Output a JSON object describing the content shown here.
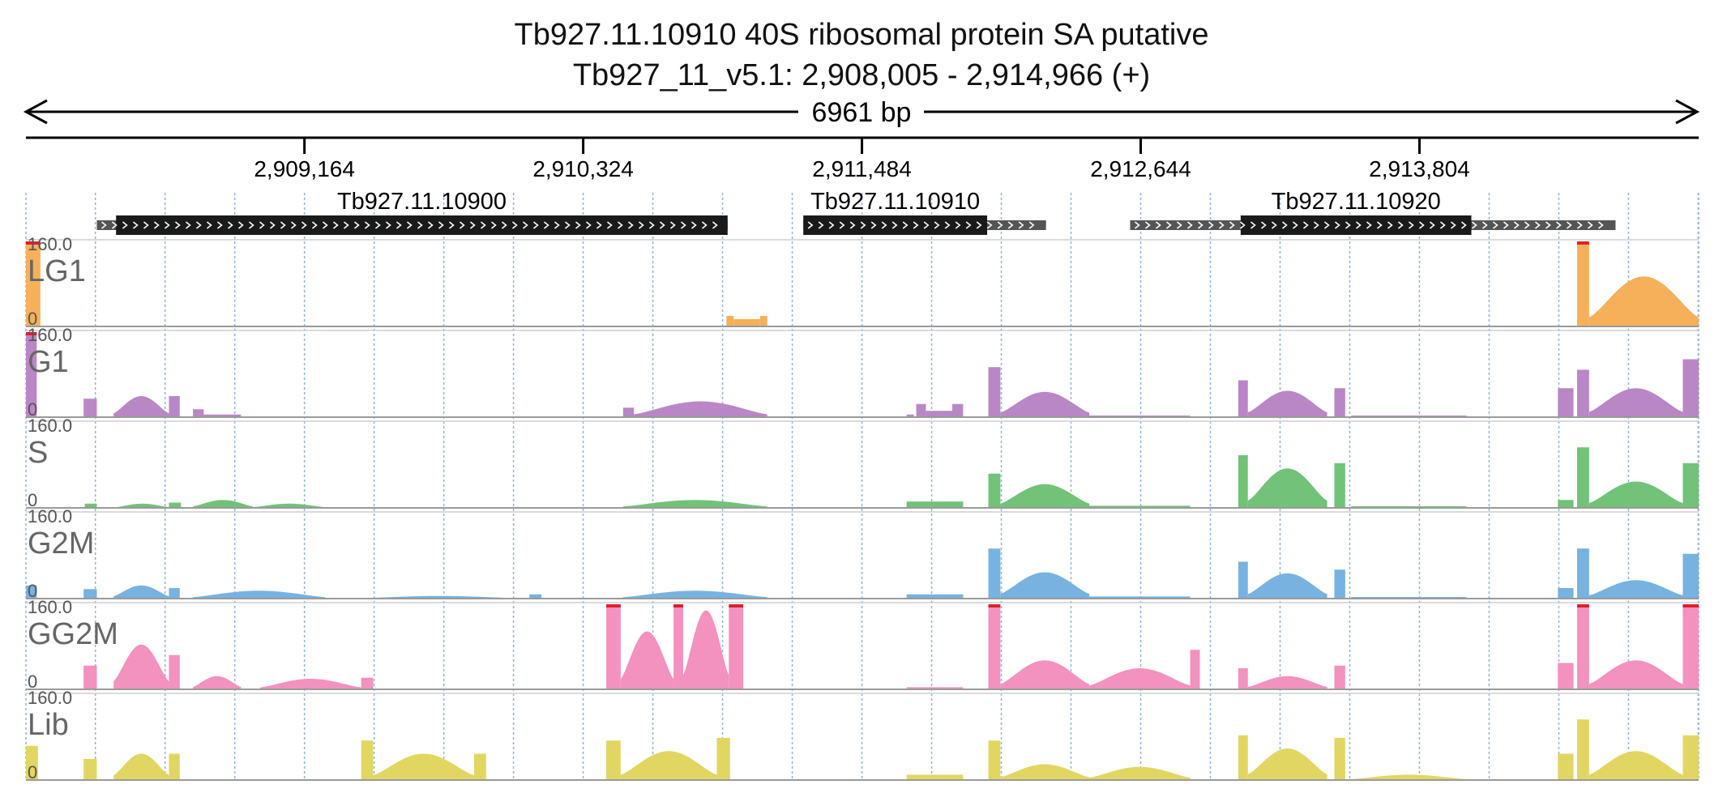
{
  "header": {
    "title": "Tb927.11.10910  40S ribosomal protein SA  putative",
    "location": "Tb927_11_v5.1: 2,908,005 - 2,914,966 (+)"
  },
  "ruler": {
    "span_label": "6961 bp",
    "start": 2908005,
    "end": 2914966,
    "ticks": [
      {
        "pos": 2909164,
        "label": "2,909,164"
      },
      {
        "pos": 2910324,
        "label": "2,910,324"
      },
      {
        "pos": 2911484,
        "label": "2,911,484"
      },
      {
        "pos": 2912644,
        "label": "2,912,644"
      },
      {
        "pos": 2913804,
        "label": "2,913,804"
      }
    ]
  },
  "genes": [
    {
      "name": "Tb927.11.10900",
      "start": 2908300,
      "end": 2910925,
      "cds_start": 2908380,
      "cds_end": 2910925
    },
    {
      "name": "Tb927.11.10910",
      "start": 2911240,
      "end": 2912250,
      "cds_start": 2911240,
      "cds_end": 2912005
    },
    {
      "name": "Tb927.11.10920",
      "start": 2912600,
      "end": 2914620,
      "cds_start": 2913060,
      "cds_end": 2914020
    }
  ],
  "colors": {
    "LG1": "#f6b05a",
    "G1": "#b987c6",
    "S": "#72c27a",
    "G2M": "#78b2e0",
    "GG2M": "#f391bf",
    "Lib": "#e2d663",
    "clip": "#e0202c",
    "cds": "#1a1a1a",
    "utr": "#555555",
    "grid": "#8fb4dd"
  },
  "chart_data": {
    "type": "area",
    "x_unit": "bp",
    "xlim": [
      2908005,
      2914966
    ],
    "ylim": [
      0,
      160.0
    ],
    "ymax_label": "160.0",
    "ymin_label": "0",
    "series": [
      {
        "name": "LG1",
        "segments": [
          [
            2908005,
            2908065,
            160
          ],
          [
            2910920,
            2910950,
            20
          ],
          [
            2910950,
            2911060,
            14
          ],
          [
            2911060,
            2911090,
            20
          ],
          [
            2914460,
            2914510,
            160
          ],
          [
            2914510,
            2914966,
            95,
            "hill"
          ]
        ]
      },
      {
        "name": "G1",
        "segments": [
          [
            2908005,
            2908050,
            160
          ],
          [
            2908245,
            2908300,
            35
          ],
          [
            2908370,
            2908600,
            40,
            "hill"
          ],
          [
            2908600,
            2908645,
            40
          ],
          [
            2908700,
            2908745,
            15
          ],
          [
            2908745,
            2908900,
            5
          ],
          [
            2910490,
            2910535,
            18
          ],
          [
            2910535,
            2911090,
            30,
            "hill"
          ],
          [
            2911670,
            2911700,
            5
          ],
          [
            2911710,
            2911750,
            25
          ],
          [
            2911750,
            2911870,
            12
          ],
          [
            2911860,
            2911905,
            25
          ],
          [
            2912010,
            2912060,
            95
          ],
          [
            2912060,
            2912430,
            48,
            "hill"
          ],
          [
            2912430,
            2912850,
            3
          ],
          [
            2913050,
            2913090,
            70
          ],
          [
            2913090,
            2913420,
            50,
            "hill"
          ],
          [
            2913450,
            2913495,
            55
          ],
          [
            2913520,
            2914000,
            3
          ],
          [
            2914380,
            2914445,
            55
          ],
          [
            2914460,
            2914510,
            90
          ],
          [
            2914510,
            2914900,
            55,
            "hill"
          ],
          [
            2914900,
            2914966,
            110
          ]
        ]
      },
      {
        "name": "S",
        "segments": [
          [
            2908250,
            2908300,
            8
          ],
          [
            2908380,
            2908600,
            8,
            "hill"
          ],
          [
            2908600,
            2908650,
            10
          ],
          [
            2908700,
            2908950,
            15,
            "hill"
          ],
          [
            2908950,
            2909250,
            8,
            "hill"
          ],
          [
            2910490,
            2911090,
            15,
            "hill"
          ],
          [
            2911670,
            2911905,
            12
          ],
          [
            2912010,
            2912060,
            65
          ],
          [
            2912060,
            2912430,
            45,
            "hill"
          ],
          [
            2912430,
            2912850,
            4
          ],
          [
            2913050,
            2913090,
            100
          ],
          [
            2913090,
            2913420,
            75,
            "hill"
          ],
          [
            2913450,
            2913495,
            85
          ],
          [
            2913520,
            2914000,
            3
          ],
          [
            2914380,
            2914445,
            15
          ],
          [
            2914460,
            2914510,
            115
          ],
          [
            2914510,
            2914900,
            50,
            "hill"
          ],
          [
            2914900,
            2914966,
            85
          ]
        ]
      },
      {
        "name": "G2M",
        "segments": [
          [
            2908005,
            2908050,
            25
          ],
          [
            2908245,
            2908300,
            18
          ],
          [
            2908370,
            2908600,
            25,
            "hill"
          ],
          [
            2908600,
            2908645,
            20
          ],
          [
            2908700,
            2909250,
            15,
            "hill"
          ],
          [
            2909400,
            2910050,
            5,
            "hill"
          ],
          [
            2910100,
            2910150,
            8
          ],
          [
            2910490,
            2911090,
            15,
            "hill"
          ],
          [
            2911670,
            2911905,
            8
          ],
          [
            2912010,
            2912060,
            95
          ],
          [
            2912060,
            2912430,
            50,
            "hill"
          ],
          [
            2912430,
            2912850,
            4
          ],
          [
            2913050,
            2913090,
            70
          ],
          [
            2913090,
            2913420,
            48,
            "hill"
          ],
          [
            2913450,
            2913495,
            55
          ],
          [
            2913520,
            2914000,
            3
          ],
          [
            2914380,
            2914445,
            20
          ],
          [
            2914460,
            2914510,
            95
          ],
          [
            2914510,
            2914900,
            35,
            "hill"
          ],
          [
            2914900,
            2914966,
            85
          ]
        ]
      },
      {
        "name": "GG2M",
        "segments": [
          [
            2908245,
            2908300,
            45
          ],
          [
            2908370,
            2908600,
            85,
            "hill"
          ],
          [
            2908600,
            2908645,
            65
          ],
          [
            2908700,
            2908900,
            25,
            "hill"
          ],
          [
            2908980,
            2909400,
            20,
            "hill"
          ],
          [
            2909400,
            2909450,
            22
          ],
          [
            2910420,
            2910480,
            160
          ],
          [
            2910480,
            2910700,
            110,
            "hill"
          ],
          [
            2910700,
            2910740,
            160
          ],
          [
            2910740,
            2910930,
            150,
            "hill"
          ],
          [
            2910930,
            2910990,
            160
          ],
          [
            2911670,
            2911905,
            4
          ],
          [
            2912010,
            2912060,
            160
          ],
          [
            2912060,
            2912430,
            55,
            "hill"
          ],
          [
            2912430,
            2912850,
            40,
            "hill"
          ],
          [
            2912850,
            2912890,
            75
          ],
          [
            2913050,
            2913090,
            40
          ],
          [
            2913090,
            2913420,
            25,
            "hill"
          ],
          [
            2913450,
            2913495,
            45
          ],
          [
            2914380,
            2914445,
            50
          ],
          [
            2914460,
            2914510,
            160
          ],
          [
            2914510,
            2914900,
            55,
            "hill"
          ],
          [
            2914900,
            2914966,
            160
          ]
        ]
      },
      {
        "name": "Lib",
        "segments": [
          [
            2908005,
            2908055,
            65
          ],
          [
            2908245,
            2908300,
            40
          ],
          [
            2908370,
            2908600,
            50,
            "hill"
          ],
          [
            2908600,
            2908645,
            50
          ],
          [
            2909400,
            2909450,
            75
          ],
          [
            2909450,
            2909870,
            50,
            "hill"
          ],
          [
            2909870,
            2909920,
            50
          ],
          [
            2910420,
            2910480,
            75
          ],
          [
            2910480,
            2910880,
            55,
            "hill"
          ],
          [
            2910880,
            2910935,
            80
          ],
          [
            2911670,
            2911905,
            10
          ],
          [
            2912010,
            2912060,
            75
          ],
          [
            2912060,
            2912430,
            30,
            "hill"
          ],
          [
            2912430,
            2912850,
            25,
            "hill"
          ],
          [
            2913050,
            2913090,
            85
          ],
          [
            2913090,
            2913420,
            60,
            "hill"
          ],
          [
            2913450,
            2913495,
            80
          ],
          [
            2913520,
            2914000,
            10,
            "hill"
          ],
          [
            2914380,
            2914445,
            50
          ],
          [
            2914460,
            2914510,
            115
          ],
          [
            2914510,
            2914900,
            55,
            "hill"
          ],
          [
            2914900,
            2914966,
            85
          ]
        ]
      }
    ]
  }
}
